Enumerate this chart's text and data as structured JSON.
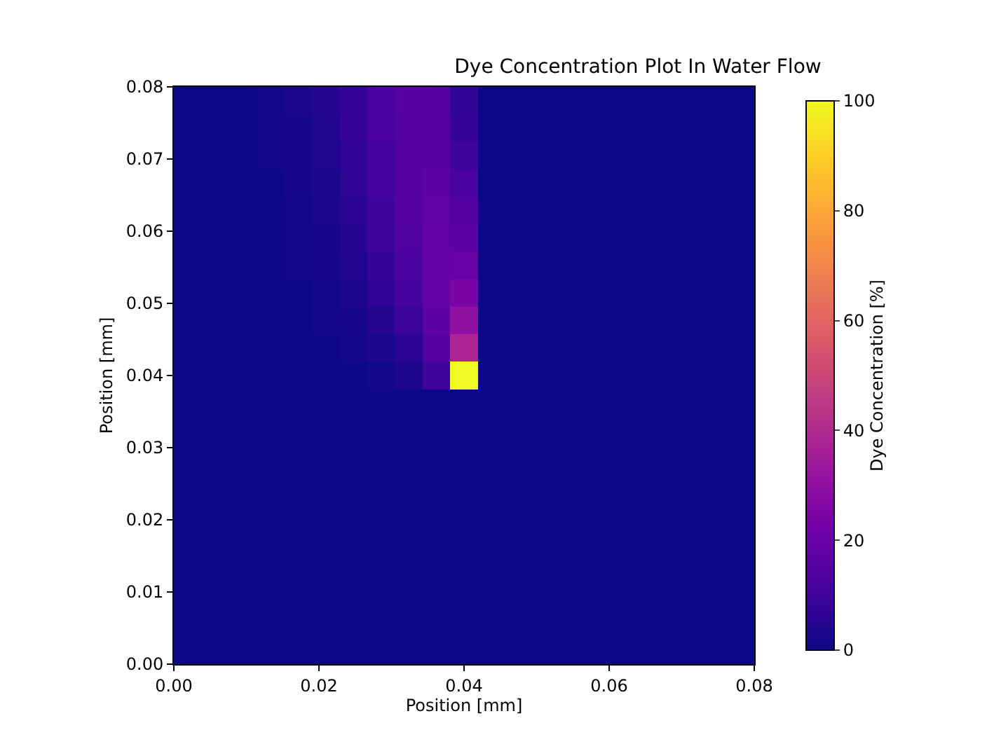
{
  "chart_data": {
    "type": "heatmap",
    "title": "Dye Concentration Plot In Water Flow",
    "xlabel": "Position [mm]",
    "ylabel": "Position [mm]",
    "clabel": "Dye Concentration [%]",
    "xlim": [
      0,
      0.08
    ],
    "ylim": [
      0,
      0.08
    ],
    "xticks": [
      {
        "value": 0,
        "label": "0.00"
      },
      {
        "value": 0.02,
        "label": "0.02"
      },
      {
        "value": 0.04,
        "label": "0.04"
      },
      {
        "value": 0.06,
        "label": "0.06"
      },
      {
        "value": 0.08,
        "label": "0.08"
      }
    ],
    "yticks": [
      {
        "value": 0,
        "label": "0.00"
      },
      {
        "value": 0.01,
        "label": "0.01"
      },
      {
        "value": 0.02,
        "label": "0.02"
      },
      {
        "value": 0.03,
        "label": "0.03"
      },
      {
        "value": 0.04,
        "label": "0.04"
      },
      {
        "value": 0.05,
        "label": "0.05"
      },
      {
        "value": 0.06,
        "label": "0.06"
      },
      {
        "value": 0.07,
        "label": "0.07"
      },
      {
        "value": 0.08,
        "label": "0.08"
      }
    ],
    "clim": [
      0,
      100
    ],
    "cticks": [
      0,
      20,
      40,
      60,
      80,
      100
    ],
    "cells": [
      [
        0,
        0,
        0,
        1,
        3,
        5,
        8,
        12,
        16,
        15,
        7,
        0,
        0,
        0,
        0,
        0,
        0,
        0,
        0,
        0,
        0
      ],
      [
        0,
        0,
        0,
        1,
        2,
        4,
        8,
        12,
        15,
        15,
        8,
        0,
        0,
        0,
        0,
        0,
        0,
        0,
        0,
        0,
        0
      ],
      [
        0,
        0,
        0,
        1,
        2,
        4,
        7,
        11,
        15,
        16,
        10,
        0,
        0,
        0,
        0,
        0,
        0,
        0,
        0,
        0,
        0
      ],
      [
        0,
        0,
        0,
        0,
        2,
        3,
        7,
        11,
        15,
        17,
        12,
        0,
        0,
        0,
        0,
        0,
        0,
        0,
        0,
        0,
        0
      ],
      [
        0,
        0,
        0,
        0,
        1,
        3,
        6,
        10,
        15,
        18,
        15,
        0,
        0,
        0,
        0,
        0,
        0,
        0,
        0,
        0,
        0
      ],
      [
        0,
        0,
        0,
        0,
        1,
        2,
        5,
        9,
        14,
        19,
        17,
        0,
        0,
        0,
        0,
        0,
        0,
        0,
        0,
        0,
        0
      ],
      [
        0,
        0,
        0,
        0,
        1,
        2,
        4,
        8,
        12,
        19,
        20,
        0,
        0,
        0,
        0,
        0,
        0,
        0,
        0,
        0,
        0
      ],
      [
        0,
        0,
        0,
        0,
        0,
        1,
        3,
        7,
        11,
        19,
        24,
        0,
        0,
        0,
        0,
        0,
        0,
        0,
        0,
        0,
        0
      ],
      [
        0,
        0,
        0,
        0,
        0,
        1,
        2,
        5,
        9,
        17,
        30,
        0,
        0,
        0,
        0,
        0,
        0,
        0,
        0,
        0,
        0
      ],
      [
        0,
        0,
        0,
        0,
        0,
        0,
        1,
        3,
        6,
        15,
        38,
        0,
        0,
        0,
        0,
        0,
        0,
        0,
        0,
        0,
        0
      ],
      [
        0,
        0,
        0,
        0,
        0,
        0,
        0,
        1,
        3,
        10,
        100,
        0,
        0,
        0,
        0,
        0,
        0,
        0,
        0,
        0,
        0
      ],
      [
        0,
        0,
        0,
        0,
        0,
        0,
        0,
        0,
        0,
        0,
        0,
        0,
        0,
        0,
        0,
        0,
        0,
        0,
        0,
        0,
        0
      ],
      [
        0,
        0,
        0,
        0,
        0,
        0,
        0,
        0,
        0,
        0,
        0,
        0,
        0,
        0,
        0,
        0,
        0,
        0,
        0,
        0,
        0
      ],
      [
        0,
        0,
        0,
        0,
        0,
        0,
        0,
        0,
        0,
        0,
        0,
        0,
        0,
        0,
        0,
        0,
        0,
        0,
        0,
        0,
        0
      ],
      [
        0,
        0,
        0,
        0,
        0,
        0,
        0,
        0,
        0,
        0,
        0,
        0,
        0,
        0,
        0,
        0,
        0,
        0,
        0,
        0,
        0
      ],
      [
        0,
        0,
        0,
        0,
        0,
        0,
        0,
        0,
        0,
        0,
        0,
        0,
        0,
        0,
        0,
        0,
        0,
        0,
        0,
        0,
        0
      ],
      [
        0,
        0,
        0,
        0,
        0,
        0,
        0,
        0,
        0,
        0,
        0,
        0,
        0,
        0,
        0,
        0,
        0,
        0,
        0,
        0,
        0
      ],
      [
        0,
        0,
        0,
        0,
        0,
        0,
        0,
        0,
        0,
        0,
        0,
        0,
        0,
        0,
        0,
        0,
        0,
        0,
        0,
        0,
        0
      ],
      [
        0,
        0,
        0,
        0,
        0,
        0,
        0,
        0,
        0,
        0,
        0,
        0,
        0,
        0,
        0,
        0,
        0,
        0,
        0,
        0,
        0
      ],
      [
        0,
        0,
        0,
        0,
        0,
        0,
        0,
        0,
        0,
        0,
        0,
        0,
        0,
        0,
        0,
        0,
        0,
        0,
        0,
        0,
        0
      ],
      [
        0,
        0,
        0,
        0,
        0,
        0,
        0,
        0,
        0,
        0,
        0,
        0,
        0,
        0,
        0,
        0,
        0,
        0,
        0,
        0,
        0
      ]
    ]
  }
}
